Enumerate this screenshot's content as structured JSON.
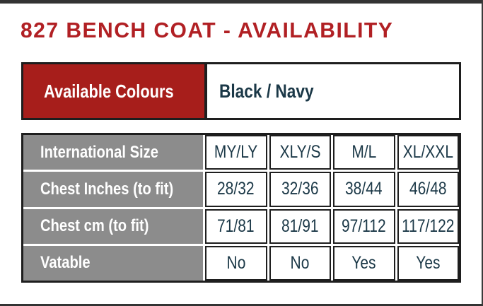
{
  "title": "827 BENCH COAT - AVAILABILITY",
  "colours_table": {
    "label": "Available Colours",
    "value": "Black / Navy"
  },
  "size_table": {
    "rows": [
      {
        "label": "International Size",
        "values": [
          "MY/LY",
          "XLY/S",
          "M/L",
          "XL/XXL"
        ]
      },
      {
        "label": "Chest Inches (to fit)",
        "values": [
          "28/32",
          "32/36",
          "38/44",
          "46/48"
        ]
      },
      {
        "label": "Chest cm (to fit)",
        "values": [
          "71/81",
          "81/91",
          "97/112",
          "117/122"
        ]
      },
      {
        "label": "Vatable",
        "values": [
          "No",
          "No",
          "Yes",
          "Yes"
        ]
      }
    ]
  },
  "colors": {
    "title_red": "#B12024",
    "accent_red": "#A71E1B",
    "label_gray": "#8C8C8C",
    "cell_text_navy": "#1B3847",
    "table_border": "#1E1E1E",
    "frame_dark": "#333333"
  }
}
